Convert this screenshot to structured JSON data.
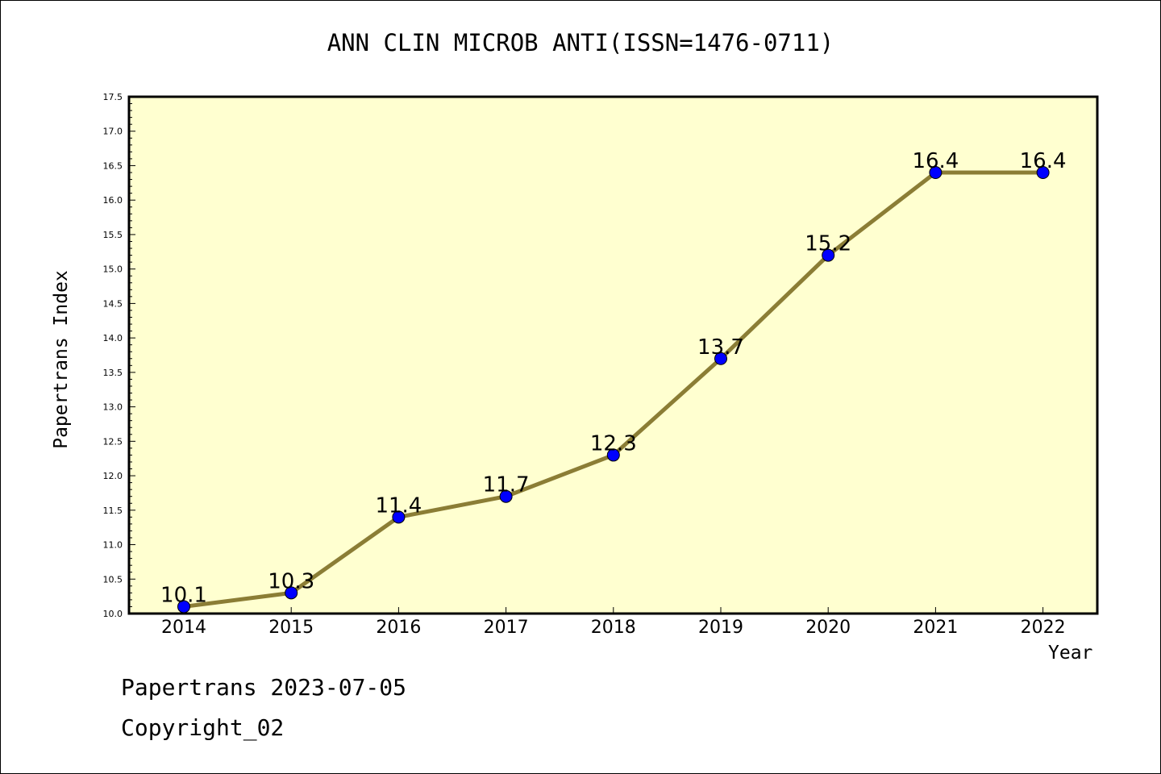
{
  "chart_data": {
    "type": "line",
    "title": "ANN CLIN MICROB ANTI(ISSN=1476-0711)",
    "xlabel": "Year",
    "ylabel": "Papertrans Index",
    "categories": [
      "2014",
      "2015",
      "2016",
      "2017",
      "2018",
      "2019",
      "2020",
      "2021",
      "2022"
    ],
    "series": [
      {
        "values": [
          10.1,
          10.3,
          11.4,
          11.7,
          12.3,
          13.7,
          15.2,
          16.4,
          16.4
        ]
      }
    ],
    "data_labels": [
      "10.1",
      "10.3",
      "11.4",
      "11.7",
      "12.3",
      "13.7",
      "15.2",
      "16.4",
      "16.4"
    ],
    "ylim": [
      10.0,
      17.5
    ],
    "yticks": [
      "10.0",
      "10.5",
      "11.0",
      "11.5",
      "12.0",
      "12.5",
      "13.0",
      "13.5",
      "14.0",
      "14.5",
      "15.0",
      "15.5",
      "16.0",
      "16.5",
      "17.0",
      "17.5"
    ],
    "grid": false,
    "colors": {
      "line": "#8b7d35",
      "marker": "#0000ff",
      "plot_background": "#ffffd0"
    }
  },
  "footer": {
    "line1": "Papertrans 2023-07-05",
    "line2": "Copyright_02"
  }
}
